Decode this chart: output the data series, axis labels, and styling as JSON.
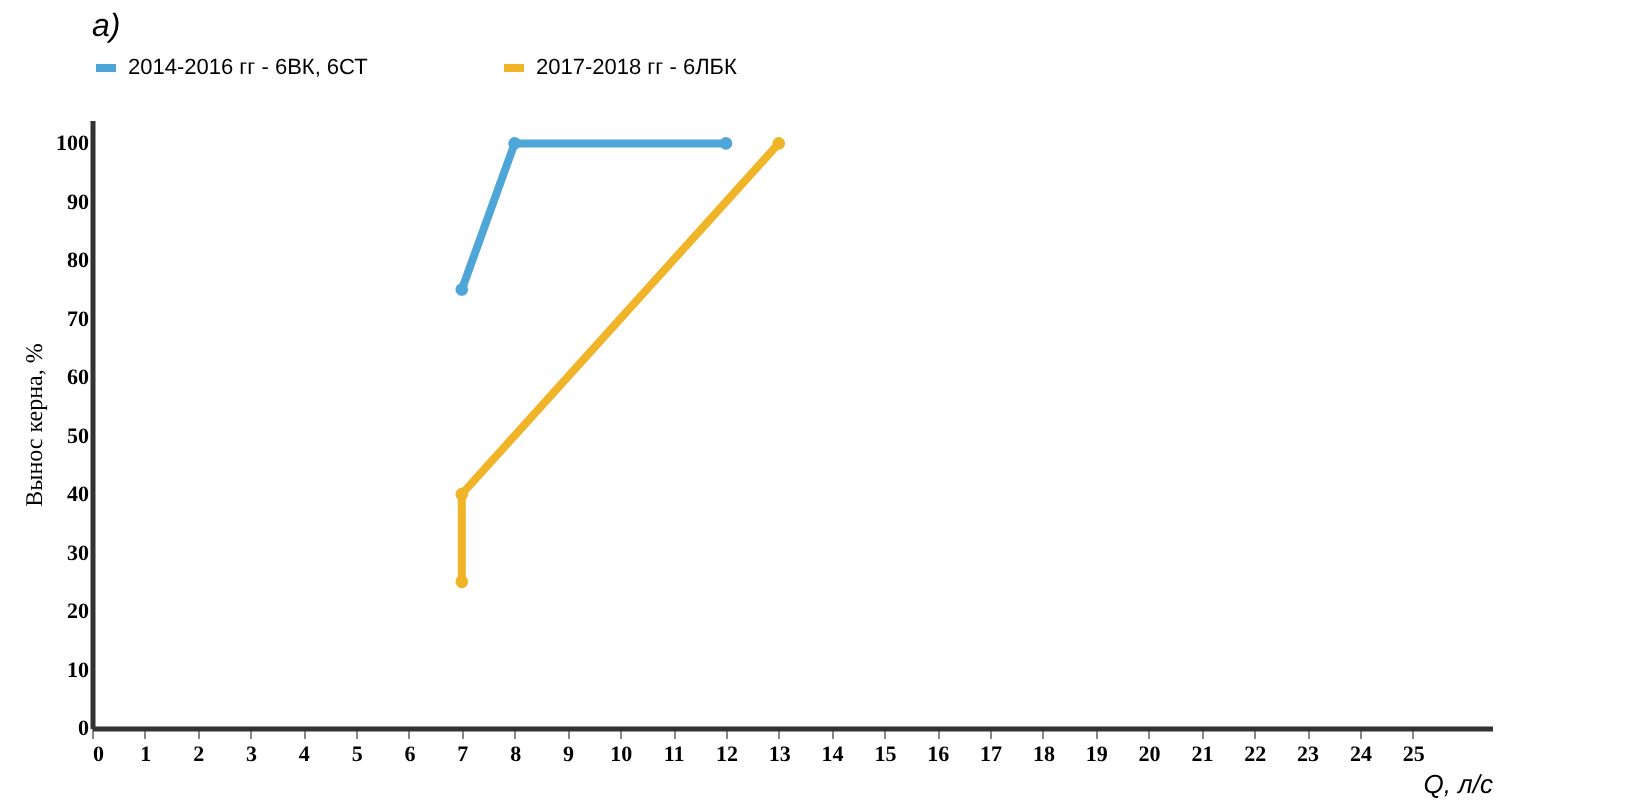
{
  "chart_data": {
    "type": "line",
    "title": "а)",
    "xlabel": "Q, л/с",
    "ylabel": "Вынос керна, %",
    "xlim": [
      0,
      26.5
    ],
    "xticks": [
      0,
      1,
      2,
      3,
      4,
      5,
      6,
      7,
      8,
      9,
      10,
      11,
      12,
      13,
      14,
      15,
      16,
      17,
      18,
      19,
      20,
      21,
      22,
      23,
      24,
      25
    ],
    "ylim": [
      0,
      104
    ],
    "yticks": [
      0,
      10,
      20,
      30,
      40,
      50,
      60,
      70,
      80,
      90,
      100
    ],
    "series": [
      {
        "name": "2014-2016 гг - 6ВК, 6СТ",
        "color": "#4ea6d8",
        "x": [
          7,
          8,
          12
        ],
        "values": [
          75,
          100,
          100
        ]
      },
      {
        "name": "2017-2018 гг - 6ЛБК",
        "color": "#f0b429",
        "x": [
          7,
          7,
          13
        ],
        "values": [
          25,
          40,
          100
        ]
      }
    ],
    "legend": "top",
    "marker": "circle",
    "line_style": "solid",
    "grid": false
  }
}
